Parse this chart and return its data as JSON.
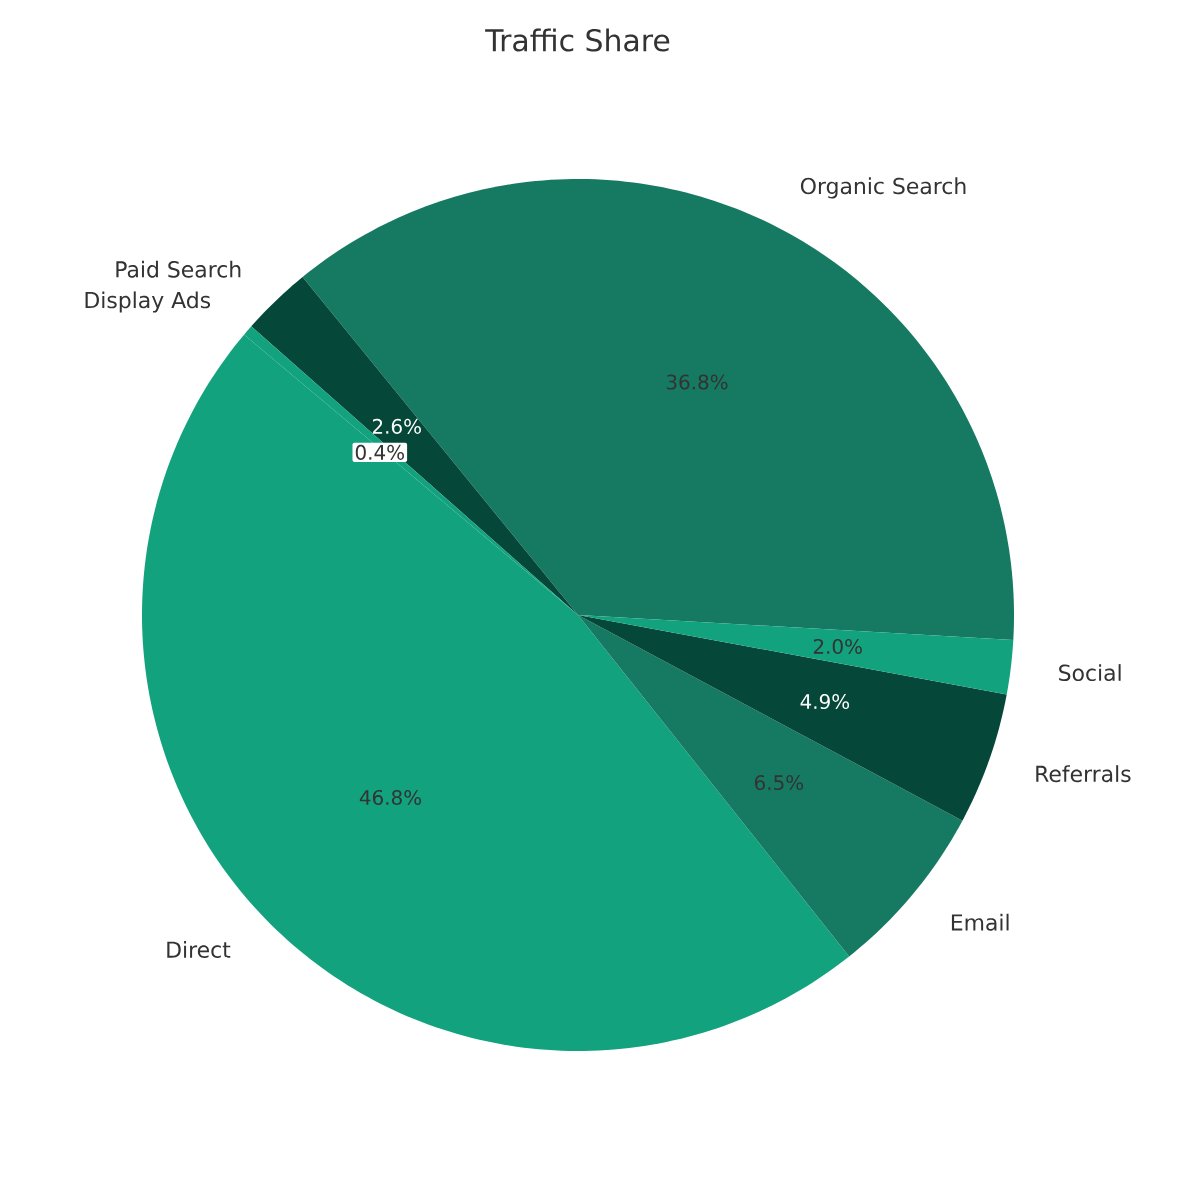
{
  "chart_data": {
    "type": "pie",
    "title": "Traffic Share",
    "categories": [
      "Organic Search",
      "Paid Search",
      "Display Ads",
      "Direct",
      "Email",
      "Referrals",
      "Social"
    ],
    "values": [
      36.8,
      2.6,
      0.4,
      46.8,
      6.5,
      4.9,
      2.0
    ],
    "value_labels": [
      "36.8%",
      "2.6%",
      "0.4%",
      "46.8%",
      "6.5%",
      "4.9%",
      "2.0%"
    ],
    "colors": [
      "#167a62",
      "#05483a",
      "#12a27e",
      "#12a27e",
      "#167a62",
      "#05483a",
      "#12a27e"
    ]
  }
}
